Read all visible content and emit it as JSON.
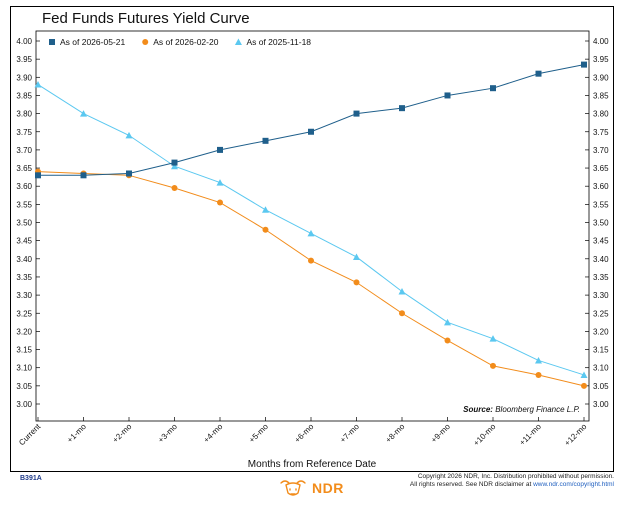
{
  "chart_data": {
    "type": "line",
    "title": "Fed Funds Futures Yield Curve",
    "xlabel": "Months from Reference Date",
    "ylabel": "",
    "categories": [
      "Current",
      "+1-mo",
      "+2-mo",
      "+3-mo",
      "+4-mo",
      "+5-mo",
      "+6-mo",
      "+7-mo",
      "+8-mo",
      "+9-mo",
      "+10-mo",
      "+11-mo",
      "+12-mo"
    ],
    "ylim": [
      3.0,
      4.0
    ],
    "yticks": [
      "3.00",
      "3.05",
      "3.10",
      "3.15",
      "3.20",
      "3.25",
      "3.30",
      "3.35",
      "3.40",
      "3.45",
      "3.50",
      "3.55",
      "3.60",
      "3.65",
      "3.70",
      "3.75",
      "3.80",
      "3.85",
      "3.90",
      "3.95",
      "4.00"
    ],
    "legend_position": "top-left",
    "grid": false,
    "series": [
      {
        "name": "As of 2026-05-21",
        "color": "#1f5f8b",
        "marker": "square",
        "values": [
          3.63,
          3.63,
          3.635,
          3.665,
          3.7,
          3.725,
          3.75,
          3.8,
          3.815,
          3.85,
          3.87,
          3.91,
          3.935
        ]
      },
      {
        "name": "As of 2026-02-20",
        "color": "#f28c1b",
        "marker": "circle",
        "values": [
          3.64,
          3.635,
          3.63,
          3.595,
          3.555,
          3.48,
          3.395,
          3.335,
          3.25,
          3.175,
          3.105,
          3.08,
          3.05
        ]
      },
      {
        "name": "As of 2025-11-18",
        "color": "#5bc8f0",
        "marker": "triangle",
        "values": [
          3.88,
          3.8,
          3.74,
          3.655,
          3.61,
          3.535,
          3.47,
          3.405,
          3.31,
          3.225,
          3.18,
          3.12,
          3.08
        ]
      }
    ]
  },
  "source": {
    "label": "Source:",
    "text": "Bloomberg Finance L.P."
  },
  "footer": {
    "code": "B391A",
    "logo_text": "NDR",
    "copyright_line1": "Copyright 2026 NDR, Inc. Distribution prohibited without permission.",
    "copyright_line2_prefix": "All rights reserved. See NDR disclaimer at ",
    "copyright_link": "www.ndr.com/copyright.html"
  }
}
